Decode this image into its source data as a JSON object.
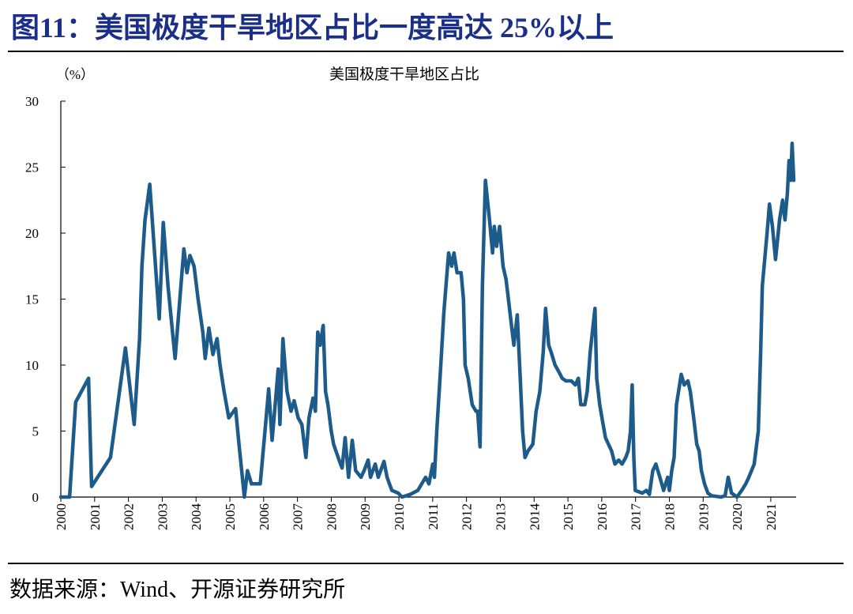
{
  "figure_title": "图11：美国极度干旱地区占比一度高达 25%以上",
  "source": "数据来源：Wind、开源证券研究所",
  "chart_data": {
    "type": "line",
    "title": "美国极度干旱地区占比",
    "y_label": "（%）",
    "color": "#1d5b8a",
    "xlim": [
      2000,
      2021.75
    ],
    "ylim": [
      0,
      30
    ],
    "xticks": [
      2000,
      2001,
      2002,
      2003,
      2004,
      2005,
      2006,
      2007,
      2008,
      2009,
      2010,
      2011,
      2012,
      2013,
      2014,
      2015,
      2016,
      2017,
      2018,
      2019,
      2020,
      2021
    ],
    "yticks": [
      0,
      5,
      10,
      15,
      20,
      25,
      30
    ],
    "x": [
      2000.0,
      2000.26,
      2000.44,
      2000.82,
      2000.91,
      2001.47,
      2001.91,
      2002.17,
      2002.33,
      2002.4,
      2002.49,
      2002.63,
      2002.91,
      2003.03,
      2003.17,
      2003.38,
      2003.52,
      2003.64,
      2003.73,
      2003.82,
      2003.94,
      2004.06,
      2004.2,
      2004.27,
      2004.38,
      2004.5,
      2004.62,
      2004.71,
      2004.83,
      2004.97,
      2005.17,
      2005.27,
      2005.43,
      2005.52,
      2005.64,
      2005.9,
      2006.04,
      2006.15,
      2006.25,
      2006.34,
      2006.43,
      2006.48,
      2006.57,
      2006.69,
      2006.81,
      2006.9,
      2007.02,
      2007.13,
      2007.25,
      2007.34,
      2007.46,
      2007.53,
      2007.6,
      2007.67,
      2007.76,
      2007.83,
      2007.9,
      2008.0,
      2008.07,
      2008.23,
      2008.32,
      2008.41,
      2008.51,
      2008.62,
      2008.72,
      2008.88,
      2008.97,
      2009.09,
      2009.16,
      2009.3,
      2009.39,
      2009.56,
      2009.65,
      2009.79,
      2009.98,
      2010.09,
      2010.33,
      2010.56,
      2010.79,
      2010.89,
      2011.0,
      2011.05,
      2011.12,
      2011.24,
      2011.33,
      2011.47,
      2011.56,
      2011.63,
      2011.72,
      2011.84,
      2011.91,
      2011.96,
      2012.05,
      2012.17,
      2012.28,
      2012.33,
      2012.4,
      2012.47,
      2012.56,
      2012.68,
      2012.77,
      2012.82,
      2012.89,
      2012.98,
      2013.08,
      2013.17,
      2013.24,
      2013.33,
      2013.4,
      2013.5,
      2013.59,
      2013.66,
      2013.73,
      2013.82,
      2013.96,
      2014.06,
      2014.17,
      2014.27,
      2014.34,
      2014.43,
      2014.5,
      2014.62,
      2014.73,
      2014.83,
      2014.94,
      2015.1,
      2015.22,
      2015.31,
      2015.38,
      2015.5,
      2015.57,
      2015.66,
      2015.8,
      2015.85,
      2015.94,
      2016.04,
      2016.11,
      2016.2,
      2016.29,
      2016.39,
      2016.5,
      2016.6,
      2016.71,
      2016.78,
      2016.85,
      2016.9,
      2016.95,
      2016.99,
      2017.2,
      2017.32,
      2017.41,
      2017.51,
      2017.6,
      2017.72,
      2017.83,
      2017.95,
      2018.0,
      2018.07,
      2018.14,
      2018.21,
      2018.35,
      2018.44,
      2018.55,
      2018.62,
      2018.72,
      2018.81,
      2018.88,
      2018.95,
      2019.04,
      2019.14,
      2019.25,
      2019.53,
      2019.65,
      2019.74,
      2019.84,
      2020.0,
      2020.14,
      2020.26,
      2020.35,
      2020.51,
      2020.63,
      2020.7,
      2020.75,
      2020.82,
      2020.89,
      2020.96,
      2021.05,
      2021.14,
      2021.26,
      2021.35,
      2021.42,
      2021.49,
      2021.54,
      2021.59,
      2021.63,
      2021.68
    ],
    "values": [
      0,
      0,
      7.2,
      9,
      0.8,
      3,
      11.3,
      5.5,
      12,
      17.5,
      21,
      23.7,
      13.5,
      20.8,
      16,
      10.5,
      15,
      18.8,
      17,
      18.3,
      17.5,
      15,
      12.5,
      10.5,
      12.8,
      10.8,
      12,
      10,
      8,
      6,
      6.7,
      4,
      0,
      2,
      1,
      1,
      5,
      8.2,
      4.3,
      7,
      9.7,
      5.5,
      12,
      8,
      6.5,
      7.3,
      6,
      5.5,
      3,
      6,
      7.5,
      6.5,
      12.5,
      11.5,
      13,
      8,
      7,
      5,
      4,
      2.8,
      2.2,
      4.5,
      1.5,
      4.3,
      2,
      1.5,
      2,
      2.8,
      1.5,
      2.5,
      1.5,
      2.7,
      1.5,
      0.5,
      0.3,
      0,
      0.2,
      0.5,
      1.5,
      1,
      2.5,
      1.5,
      5,
      10,
      14,
      18.5,
      17.5,
      18.5,
      17,
      17,
      15,
      10,
      9,
      7,
      6.5,
      6.5,
      3.8,
      16,
      24,
      21,
      18.5,
      20.5,
      19,
      20.5,
      17.5,
      16.5,
      15,
      13,
      11.5,
      13.8,
      9,
      5,
      3,
      3.5,
      4,
      6.5,
      8,
      11,
      14.3,
      11.5,
      11,
      10,
      9.5,
      9,
      8.8,
      8.8,
      8.5,
      9,
      7,
      7,
      8,
      11,
      14.3,
      9,
      7,
      5.5,
      4.5,
      4,
      3.5,
      2.5,
      2.8,
      2.5,
      3,
      3.5,
      5,
      8.5,
      3,
      0.5,
      0.3,
      0.5,
      0.2,
      2,
      2.5,
      1.5,
      0.5,
      1.5,
      0.5,
      2,
      3,
      7,
      9.3,
      8.5,
      8.8,
      8,
      6,
      4,
      3.5,
      2,
      1,
      0.3,
      0.1,
      0,
      0.1,
      1.5,
      0.3,
      0,
      0.5,
      1,
      1.5,
      2.5,
      5,
      11,
      16,
      18,
      20,
      22.2,
      20.5,
      18,
      21,
      22.5,
      21,
      23,
      25.5,
      24,
      26.8,
      24
    ]
  }
}
